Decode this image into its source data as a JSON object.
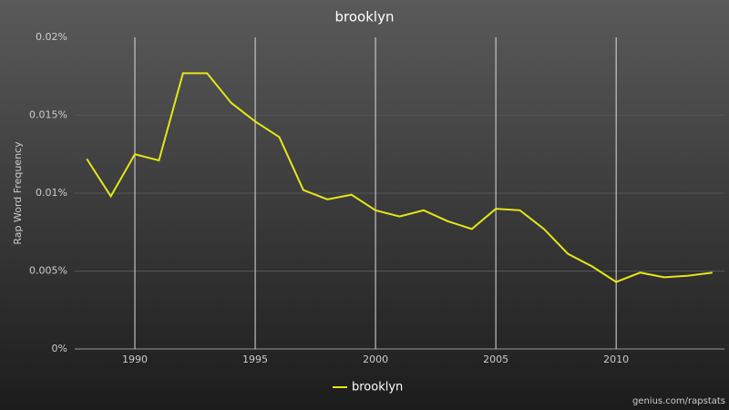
{
  "chart_data": {
    "type": "line",
    "title": "brooklyn",
    "ylabel": "Rap Word Frequency",
    "credit": "genius.com/rapstats",
    "x": [
      1988,
      1989,
      1990,
      1991,
      1992,
      1993,
      1994,
      1995,
      1996,
      1997,
      1998,
      1999,
      2000,
      2001,
      2002,
      2003,
      2004,
      2005,
      2006,
      2007,
      2008,
      2009,
      2010,
      2011,
      2012,
      2013,
      2014
    ],
    "series": [
      {
        "name": "brooklyn",
        "color": "#e6e619",
        "values": [
          0.0122,
          0.0098,
          0.0125,
          0.0121,
          0.0177,
          0.0177,
          0.0158,
          0.0146,
          0.0136,
          0.0102,
          0.0096,
          0.0099,
          0.0089,
          0.0085,
          0.0089,
          0.0082,
          0.0077,
          0.009,
          0.0089,
          0.0077,
          0.0061,
          0.0053,
          0.0043,
          0.0049,
          0.0046,
          0.0047,
          0.0049
        ]
      }
    ],
    "xlim": [
      1987.5,
      2014.5
    ],
    "xticks": [
      1990,
      1995,
      2000,
      2005,
      2010
    ],
    "ylim": [
      0,
      0.02
    ],
    "yticks": [
      {
        "value": 0,
        "label": "0%"
      },
      {
        "value": 0.005,
        "label": "0.005%"
      },
      {
        "value": 0.01,
        "label": "0.01%"
      },
      {
        "value": 0.015,
        "label": "0.015%"
      },
      {
        "value": 0.02,
        "label": "0.02%"
      }
    ],
    "grid": true,
    "legend": "bottom"
  }
}
